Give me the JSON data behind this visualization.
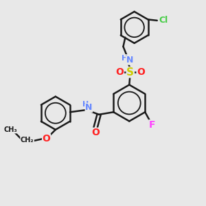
{
  "bg_color": "#e8e8e8",
  "bond_color": "#1a1a1a",
  "bond_width": 1.8,
  "atom_colors": {
    "N": "#6688ff",
    "O": "#ff2222",
    "S": "#cccc00",
    "F": "#ff44ff",
    "Cl": "#44cc44",
    "C": "#1a1a1a",
    "H": "#6688ff"
  },
  "font_size": 9
}
